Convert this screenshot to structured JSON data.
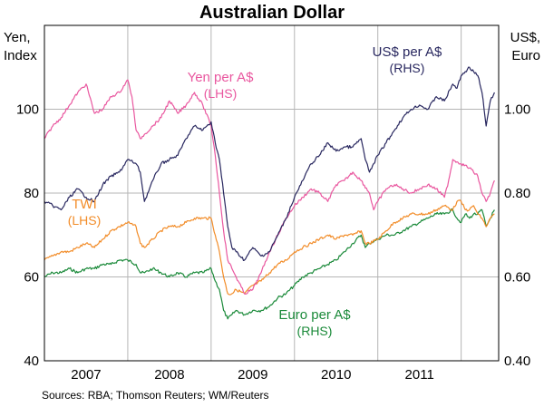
{
  "chart_data": {
    "type": "line",
    "title": "Australian Dollar",
    "left_axis": {
      "label_lines": [
        "Yen,",
        "Index"
      ],
      "range": [
        40,
        120
      ],
      "ticks": [
        40,
        60,
        80,
        100
      ],
      "tick_labels": [
        "40",
        "60",
        "80",
        "100"
      ]
    },
    "right_axis": {
      "label_lines": [
        "US$,",
        "Euro"
      ],
      "range": [
        0.4,
        1.2
      ],
      "ticks": [
        0.4,
        0.6,
        0.8,
        1.0
      ],
      "tick_labels": [
        "0.40",
        "0.60",
        "0.80",
        "1.00"
      ]
    },
    "x_range": [
      2006.5,
      2011.95
    ],
    "x_ticks": [
      {
        "label": "2007",
        "pos": 2007.0
      },
      {
        "label": "2008",
        "pos": 2008.0
      },
      {
        "label": "2009",
        "pos": 2009.0
      },
      {
        "label": "2010",
        "pos": 2010.0
      },
      {
        "label": "2011",
        "pos": 2011.0
      }
    ],
    "x_gridlines": [
      2007.5,
      2008.5,
      2009.5,
      2010.5,
      2011.5
    ],
    "series": [
      {
        "name": "Yen per A$",
        "axis": "LHS",
        "color": "#e9579f",
        "label_lines": [
          "Yen per A$",
          "(LHS)"
        ],
        "x": [
          2006.5,
          2006.6,
          2006.7,
          2006.8,
          2006.9,
          2007.0,
          2007.1,
          2007.2,
          2007.3,
          2007.4,
          2007.5,
          2007.55,
          2007.6,
          2007.65,
          2007.7,
          2007.8,
          2007.9,
          2008.0,
          2008.1,
          2008.2,
          2008.3,
          2008.4,
          2008.5,
          2008.55,
          2008.6,
          2008.65,
          2008.7,
          2008.75,
          2008.8,
          2008.9,
          2009.0,
          2009.1,
          2009.2,
          2009.3,
          2009.4,
          2009.5,
          2009.6,
          2009.7,
          2009.8,
          2009.9,
          2010.0,
          2010.1,
          2010.2,
          2010.3,
          2010.4,
          2010.45,
          2010.5,
          2010.6,
          2010.7,
          2010.8,
          2010.9,
          2011.0,
          2011.1,
          2011.2,
          2011.3,
          2011.35,
          2011.4,
          2011.5,
          2011.6,
          2011.7,
          2011.75,
          2011.8,
          2011.85,
          2011.9
        ],
        "values": [
          93,
          96,
          98,
          101,
          104,
          106,
          99,
          100,
          103,
          104,
          107,
          103,
          95,
          93,
          94,
          96,
          98,
          102,
          99,
          101,
          104,
          101,
          96,
          89,
          80,
          71,
          64,
          62,
          60,
          56,
          57,
          61,
          66,
          70,
          74,
          77,
          79,
          81,
          80,
          78,
          82,
          83,
          85,
          83,
          80,
          76,
          78,
          81,
          82,
          81,
          80,
          81,
          82,
          81,
          79,
          83,
          88,
          87,
          86,
          84,
          80,
          78,
          80,
          83
        ]
      },
      {
        "name": "US$ per A$",
        "axis": "RHS",
        "color": "#28275f",
        "label_lines": [
          "US$ per A$",
          "(RHS)"
        ],
        "x": [
          2006.5,
          2006.6,
          2006.7,
          2006.8,
          2006.9,
          2007.0,
          2007.1,
          2007.2,
          2007.3,
          2007.4,
          2007.5,
          2007.6,
          2007.65,
          2007.7,
          2007.8,
          2007.9,
          2008.0,
          2008.1,
          2008.2,
          2008.3,
          2008.4,
          2008.5,
          2008.55,
          2008.6,
          2008.65,
          2008.7,
          2008.75,
          2008.8,
          2008.9,
          2009.0,
          2009.1,
          2009.2,
          2009.3,
          2009.4,
          2009.5,
          2009.6,
          2009.7,
          2009.8,
          2009.9,
          2010.0,
          2010.1,
          2010.2,
          2010.3,
          2010.35,
          2010.4,
          2010.45,
          2010.5,
          2010.6,
          2010.7,
          2010.8,
          2010.9,
          2011.0,
          2011.1,
          2011.2,
          2011.3,
          2011.4,
          2011.45,
          2011.5,
          2011.55,
          2011.6,
          2011.65,
          2011.7,
          2011.75,
          2011.8,
          2011.85,
          2011.9
        ],
        "values": [
          0.78,
          0.77,
          0.76,
          0.79,
          0.81,
          0.79,
          0.78,
          0.82,
          0.84,
          0.85,
          0.88,
          0.87,
          0.85,
          0.78,
          0.83,
          0.87,
          0.88,
          0.89,
          0.93,
          0.96,
          0.95,
          0.97,
          0.92,
          0.88,
          0.8,
          0.72,
          0.67,
          0.66,
          0.64,
          0.67,
          0.65,
          0.66,
          0.7,
          0.74,
          0.79,
          0.83,
          0.87,
          0.89,
          0.92,
          0.9,
          0.91,
          0.91,
          0.93,
          0.88,
          0.85,
          0.87,
          0.89,
          0.92,
          0.95,
          0.98,
          1.0,
          1.01,
          1.0,
          1.03,
          1.02,
          1.06,
          1.05,
          1.08,
          1.09,
          1.1,
          1.09,
          1.08,
          1.04,
          0.96,
          1.02,
          1.04
        ]
      },
      {
        "name": "TWI",
        "axis": "LHS",
        "color": "#f28c28",
        "label_lines": [
          "TWI",
          "(LHS)"
        ],
        "x": [
          2006.5,
          2006.6,
          2006.7,
          2006.8,
          2006.9,
          2007.0,
          2007.1,
          2007.2,
          2007.3,
          2007.4,
          2007.5,
          2007.6,
          2007.65,
          2007.7,
          2007.8,
          2007.9,
          2008.0,
          2008.1,
          2008.2,
          2008.3,
          2008.4,
          2008.5,
          2008.55,
          2008.6,
          2008.65,
          2008.7,
          2008.75,
          2008.8,
          2008.9,
          2009.0,
          2009.1,
          2009.2,
          2009.3,
          2009.4,
          2009.5,
          2009.6,
          2009.7,
          2009.8,
          2009.9,
          2010.0,
          2010.1,
          2010.2,
          2010.3,
          2010.35,
          2010.4,
          2010.5,
          2010.6,
          2010.7,
          2010.8,
          2010.9,
          2011.0,
          2011.1,
          2011.2,
          2011.3,
          2011.4,
          2011.45,
          2011.5,
          2011.55,
          2011.6,
          2011.65,
          2011.7,
          2011.75,
          2011.8,
          2011.85,
          2011.9
        ],
        "values": [
          64,
          65,
          66,
          66,
          67,
          68,
          67,
          69,
          71,
          72,
          73,
          72,
          68,
          67,
          69,
          71,
          72,
          72,
          73,
          74,
          74,
          74,
          70,
          66,
          60,
          56,
          56,
          57,
          56,
          58,
          59,
          61,
          63,
          64,
          66,
          67,
          68,
          69,
          70,
          69,
          70,
          70,
          71,
          68,
          68,
          69,
          71,
          73,
          74,
          75,
          75,
          75,
          76,
          77,
          76,
          78,
          78,
          76,
          76,
          77,
          75,
          74,
          72,
          74,
          75
        ]
      },
      {
        "name": "Euro per A$",
        "axis": "RHS",
        "color": "#1b8a3a",
        "label_lines": [
          "Euro per A$",
          "(RHS)"
        ],
        "x": [
          2006.5,
          2006.6,
          2006.7,
          2006.8,
          2006.9,
          2007.0,
          2007.1,
          2007.2,
          2007.3,
          2007.4,
          2007.5,
          2007.6,
          2007.65,
          2007.7,
          2007.8,
          2007.9,
          2008.0,
          2008.1,
          2008.2,
          2008.3,
          2008.4,
          2008.5,
          2008.55,
          2008.6,
          2008.65,
          2008.7,
          2008.75,
          2008.8,
          2008.9,
          2009.0,
          2009.1,
          2009.2,
          2009.3,
          2009.4,
          2009.5,
          2009.6,
          2009.7,
          2009.8,
          2009.9,
          2010.0,
          2010.1,
          2010.2,
          2010.3,
          2010.35,
          2010.4,
          2010.5,
          2010.6,
          2010.7,
          2010.8,
          2010.9,
          2011.0,
          2011.1,
          2011.2,
          2011.3,
          2011.4,
          2011.45,
          2011.5,
          2011.55,
          2011.6,
          2011.65,
          2011.7,
          2011.75,
          2011.8,
          2011.85,
          2011.9
        ],
        "values": [
          0.6,
          0.61,
          0.61,
          0.62,
          0.61,
          0.62,
          0.62,
          0.63,
          0.63,
          0.64,
          0.64,
          0.63,
          0.61,
          0.61,
          0.62,
          0.61,
          0.6,
          0.61,
          0.6,
          0.61,
          0.61,
          0.62,
          0.59,
          0.57,
          0.52,
          0.5,
          0.51,
          0.52,
          0.51,
          0.52,
          0.52,
          0.53,
          0.55,
          0.56,
          0.58,
          0.6,
          0.61,
          0.62,
          0.63,
          0.64,
          0.66,
          0.68,
          0.7,
          0.67,
          0.68,
          0.69,
          0.7,
          0.7,
          0.71,
          0.72,
          0.73,
          0.74,
          0.75,
          0.75,
          0.76,
          0.74,
          0.73,
          0.75,
          0.74,
          0.75,
          0.75,
          0.76,
          0.72,
          0.74,
          0.76
        ]
      }
    ]
  },
  "footer": {
    "source": "Sources: RBA; Thomson Reuters; WM/Reuters"
  }
}
